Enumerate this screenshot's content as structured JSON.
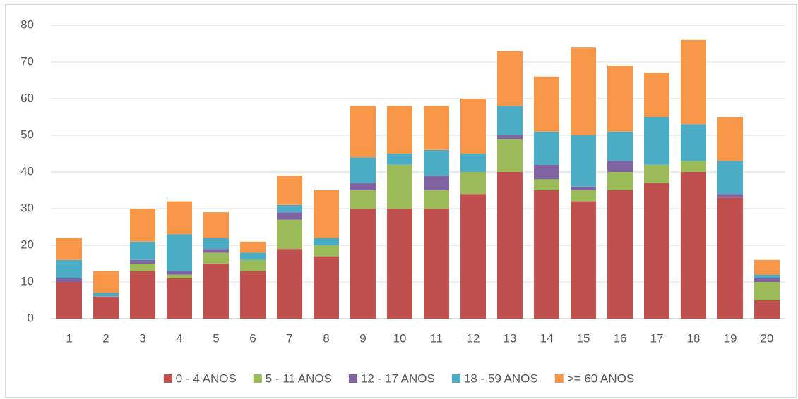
{
  "chart_data": {
    "type": "stacked_bar",
    "categories": [
      "1",
      "2",
      "3",
      "4",
      "5",
      "6",
      "7",
      "8",
      "9",
      "10",
      "11",
      "12",
      "13",
      "14",
      "15",
      "16",
      "17",
      "18",
      "19",
      "20"
    ],
    "series": [
      {
        "name": "0 - 4 ANOS",
        "color": "#c0504d",
        "values": [
          10,
          6,
          13,
          11,
          15,
          13,
          19,
          17,
          30,
          30,
          30,
          34,
          40,
          35,
          32,
          35,
          37,
          40,
          33,
          5
        ]
      },
      {
        "name": "5 - 11 ANOS",
        "color": "#9bbb59",
        "values": [
          0,
          0,
          2,
          1,
          3,
          3,
          8,
          3,
          5,
          12,
          5,
          6,
          9,
          3,
          3,
          5,
          5,
          3,
          0,
          5
        ]
      },
      {
        "name": "12 - 17 ANOS",
        "color": "#8064a2",
        "values": [
          1,
          0,
          1,
          1,
          1,
          0,
          2,
          0,
          2,
          0,
          4,
          0,
          1,
          4,
          1,
          3,
          0,
          0,
          1,
          1
        ]
      },
      {
        "name": "18 - 59 ANOS",
        "color": "#4bacc6",
        "values": [
          5,
          1,
          5,
          10,
          3,
          2,
          2,
          2,
          7,
          3,
          7,
          5,
          8,
          9,
          14,
          8,
          13,
          10,
          9,
          1
        ]
      },
      {
        "name": ">= 60 ANOS",
        "color": "#f79646",
        "values": [
          6,
          6,
          9,
          9,
          7,
          3,
          8,
          13,
          14,
          13,
          12,
          15,
          15,
          15,
          24,
          18,
          12,
          23,
          12,
          4
        ]
      }
    ],
    "ylim": [
      0,
      80
    ],
    "yticks": [
      0,
      10,
      20,
      30,
      40,
      50,
      60,
      70,
      80
    ],
    "grid": true,
    "legend": "bottom"
  }
}
